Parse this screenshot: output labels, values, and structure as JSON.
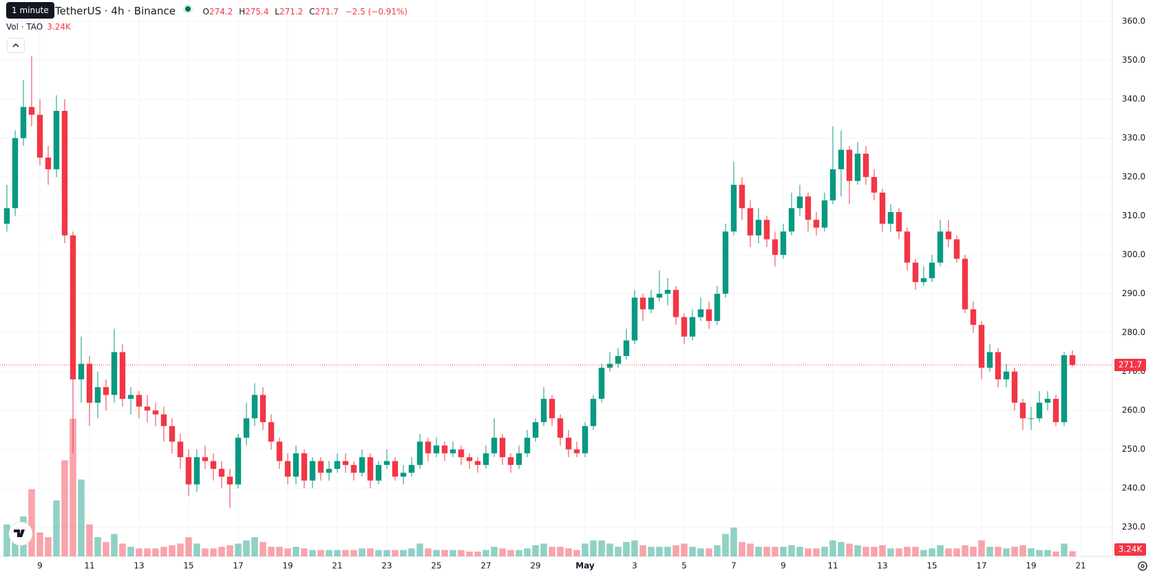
{
  "chart_data": {
    "type": "candlestick",
    "tooltip": "1 minute",
    "title": "TetherUS · 4h · Binance",
    "ohlc_labels": [
      "O",
      "H",
      "L",
      "C"
    ],
    "change": "−2.5 (−0.91%)",
    "volume_title": "Vol · TAO",
    "volume_label": "3.24K",
    "up_color": "#089981",
    "down_color": "#f23645",
    "ylim": [
      222.5,
      365.5
    ],
    "yticks": [
      {
        "value": 230,
        "label": "230.0"
      },
      {
        "value": 240,
        "label": "240.0"
      },
      {
        "value": 250,
        "label": "250.0"
      },
      {
        "value": 260,
        "label": "260.0"
      },
      {
        "value": 270,
        "label": "270.0"
      },
      {
        "value": 280,
        "label": "280.0"
      },
      {
        "value": 290,
        "label": "290.0"
      },
      {
        "value": 300,
        "label": "300.0"
      },
      {
        "value": 310,
        "label": "310.0"
      },
      {
        "value": 320,
        "label": "320.0"
      },
      {
        "value": 330,
        "label": "330.0"
      },
      {
        "value": 340,
        "label": "340.0"
      },
      {
        "value": 350,
        "label": "350.0"
      },
      {
        "value": 360,
        "label": "360.0"
      }
    ],
    "xtick_labels": [
      "9",
      "11",
      "13",
      "15",
      "17",
      "19",
      "21",
      "23",
      "25",
      "27",
      "29",
      "May",
      "3",
      "5",
      "7",
      "9",
      "11",
      "13",
      "15",
      "17",
      "19",
      "21"
    ],
    "grid": true,
    "candles": [
      [
        308,
        318,
        306,
        312
      ],
      [
        312,
        332,
        310,
        330
      ],
      [
        330,
        345,
        328,
        338
      ],
      [
        338,
        351,
        333,
        336
      ],
      [
        336,
        340,
        323,
        325
      ],
      [
        325,
        328,
        318,
        322
      ],
      [
        322,
        341,
        320,
        337
      ],
      [
        337,
        340,
        303,
        305
      ],
      [
        305,
        306,
        249,
        268
      ],
      [
        268,
        279,
        262,
        272
      ],
      [
        272,
        274,
        256,
        262
      ],
      [
        262,
        270,
        258,
        266
      ],
      [
        266,
        268,
        260,
        264
      ],
      [
        264,
        281,
        262,
        275
      ],
      [
        275,
        277,
        261,
        263
      ],
      [
        263,
        266,
        259,
        264
      ],
      [
        264,
        265,
        258,
        261
      ],
      [
        261,
        264,
        257,
        260
      ],
      [
        260,
        262,
        256,
        259
      ],
      [
        259,
        261,
        252,
        256
      ],
      [
        256,
        258,
        249,
        252
      ],
      [
        252,
        254,
        245,
        248
      ],
      [
        248,
        250,
        238,
        241
      ],
      [
        241,
        250,
        239,
        248
      ],
      [
        248,
        251,
        245,
        247
      ],
      [
        247,
        249,
        242,
        245
      ],
      [
        245,
        247,
        240,
        243
      ],
      [
        243,
        245,
        235,
        241
      ],
      [
        241,
        254,
        240,
        253
      ],
      [
        253,
        262,
        251,
        258
      ],
      [
        258,
        267,
        256,
        264
      ],
      [
        264,
        266,
        255,
        257
      ],
      [
        257,
        259,
        250,
        252
      ],
      [
        252,
        253,
        245,
        247
      ],
      [
        247,
        249,
        241,
        243
      ],
      [
        243,
        251,
        241,
        249
      ],
      [
        249,
        250,
        240,
        242
      ],
      [
        242,
        248,
        240,
        247
      ],
      [
        247,
        248,
        242,
        244
      ],
      [
        244,
        247,
        242,
        245
      ],
      [
        245,
        249,
        244,
        247
      ],
      [
        247,
        249,
        244,
        246
      ],
      [
        246,
        247,
        242,
        244
      ],
      [
        244,
        250,
        243,
        248
      ],
      [
        248,
        249,
        240,
        242
      ],
      [
        242,
        247,
        241,
        246
      ],
      [
        246,
        250,
        245,
        247
      ],
      [
        247,
        248,
        242,
        243
      ],
      [
        243,
        246,
        241,
        244
      ],
      [
        244,
        248,
        243,
        246
      ],
      [
        246,
        254,
        245,
        252
      ],
      [
        252,
        253,
        247,
        249
      ],
      [
        249,
        253,
        248,
        251
      ],
      [
        251,
        252,
        247,
        249
      ],
      [
        249,
        252,
        248,
        250
      ],
      [
        250,
        251,
        246,
        248
      ],
      [
        248,
        249,
        245,
        247
      ],
      [
        247,
        248,
        244,
        246
      ],
      [
        246,
        251,
        245,
        249
      ],
      [
        249,
        258,
        248,
        253
      ],
      [
        253,
        254,
        246,
        248
      ],
      [
        248,
        249,
        244,
        246
      ],
      [
        246,
        251,
        245,
        249
      ],
      [
        249,
        255,
        248,
        253
      ],
      [
        253,
        258,
        252,
        257
      ],
      [
        257,
        266,
        256,
        263
      ],
      [
        263,
        264,
        256,
        258
      ],
      [
        258,
        259,
        251,
        253
      ],
      [
        253,
        255,
        248,
        250
      ],
      [
        250,
        252,
        248,
        249
      ],
      [
        249,
        257,
        248,
        256
      ],
      [
        256,
        264,
        255,
        263
      ],
      [
        263,
        272,
        262,
        271
      ],
      [
        271,
        275,
        270,
        272
      ],
      [
        272,
        276,
        271,
        274
      ],
      [
        274,
        281,
        273,
        278
      ],
      [
        278,
        291,
        277,
        289
      ],
      [
        289,
        290,
        283,
        286
      ],
      [
        286,
        291,
        285,
        289
      ],
      [
        289,
        296,
        288,
        290
      ],
      [
        290,
        294,
        287,
        291
      ],
      [
        291,
        292,
        282,
        284
      ],
      [
        284,
        285,
        277,
        279
      ],
      [
        279,
        286,
        278,
        284
      ],
      [
        284,
        289,
        283,
        286
      ],
      [
        286,
        288,
        281,
        283
      ],
      [
        283,
        292,
        282,
        290
      ],
      [
        290,
        308,
        289,
        306
      ],
      [
        306,
        324,
        305,
        318
      ],
      [
        318,
        320,
        309,
        312
      ],
      [
        312,
        314,
        302,
        305
      ],
      [
        305,
        312,
        303,
        309
      ],
      [
        309,
        310,
        302,
        304
      ],
      [
        304,
        306,
        297,
        300
      ],
      [
        300,
        308,
        299,
        306
      ],
      [
        306,
        316,
        305,
        312
      ],
      [
        312,
        318,
        310,
        315
      ],
      [
        315,
        316,
        306,
        309
      ],
      [
        309,
        311,
        305,
        307
      ],
      [
        307,
        316,
        306,
        314
      ],
      [
        314,
        333,
        313,
        322
      ],
      [
        322,
        332,
        315,
        327
      ],
      [
        327,
        328,
        313,
        319
      ],
      [
        319,
        329,
        318,
        326
      ],
      [
        326,
        328,
        318,
        320
      ],
      [
        320,
        322,
        314,
        316
      ],
      [
        316,
        317,
        306,
        308
      ],
      [
        308,
        313,
        306,
        311
      ],
      [
        311,
        312,
        304,
        306
      ],
      [
        306,
        307,
        296,
        298
      ],
      [
        298,
        299,
        291,
        293
      ],
      [
        293,
        297,
        292,
        294
      ],
      [
        294,
        300,
        293,
        298
      ],
      [
        298,
        309,
        297,
        306
      ],
      [
        306,
        309,
        302,
        304
      ],
      [
        304,
        305,
        298,
        299
      ],
      [
        299,
        300,
        285,
        286
      ],
      [
        286,
        288,
        280,
        282
      ],
      [
        282,
        283,
        268,
        271
      ],
      [
        271,
        277,
        270,
        275
      ],
      [
        275,
        276,
        266,
        268
      ],
      [
        268,
        272,
        266,
        270
      ],
      [
        270,
        271,
        260,
        262
      ],
      [
        262,
        263,
        255,
        258
      ],
      [
        258,
        261,
        255,
        258
      ],
      [
        258,
        265,
        257,
        262
      ],
      [
        262,
        265,
        260,
        263
      ],
      [
        263,
        264,
        256,
        257
      ],
      [
        257,
        275,
        256,
        274.2
      ],
      [
        274.2,
        275.4,
        271.2,
        271.7
      ]
    ],
    "volume": [
      20000,
      18000,
      25000,
      42000,
      15000,
      12000,
      35000,
      60000,
      86000,
      48000,
      20000,
      12000,
      9000,
      14000,
      8000,
      6000,
      5000,
      5000,
      5000,
      6000,
      7000,
      8000,
      12000,
      8000,
      5000,
      5000,
      6000,
      7000,
      8000,
      10000,
      12000,
      9000,
      6000,
      6000,
      5000,
      6000,
      5000,
      4000,
      4000,
      4000,
      4000,
      4000,
      4000,
      5000,
      5000,
      4000,
      4000,
      4000,
      4000,
      5000,
      8000,
      5000,
      4000,
      4000,
      4000,
      4000,
      3000,
      3000,
      4000,
      6000,
      5000,
      4000,
      4000,
      5000,
      7000,
      8000,
      6000,
      6000,
      5000,
      4000,
      8000,
      10000,
      10000,
      8000,
      6000,
      9000,
      10000,
      7000,
      6000,
      6000,
      6000,
      7000,
      8000,
      6000,
      5000,
      5000,
      7000,
      14000,
      18000,
      9000,
      8000,
      6000,
      6000,
      6000,
      6000,
      7000,
      6000,
      5000,
      5000,
      6000,
      10000,
      9000,
      8000,
      7000,
      6000,
      6000,
      7000,
      5000,
      5000,
      6000,
      6000,
      4000,
      5000,
      7000,
      5000,
      5000,
      7000,
      6000,
      10000,
      6000,
      6000,
      5000,
      6000,
      7000,
      5000,
      4000,
      4000,
      3000,
      8000,
      3240
    ]
  }
}
